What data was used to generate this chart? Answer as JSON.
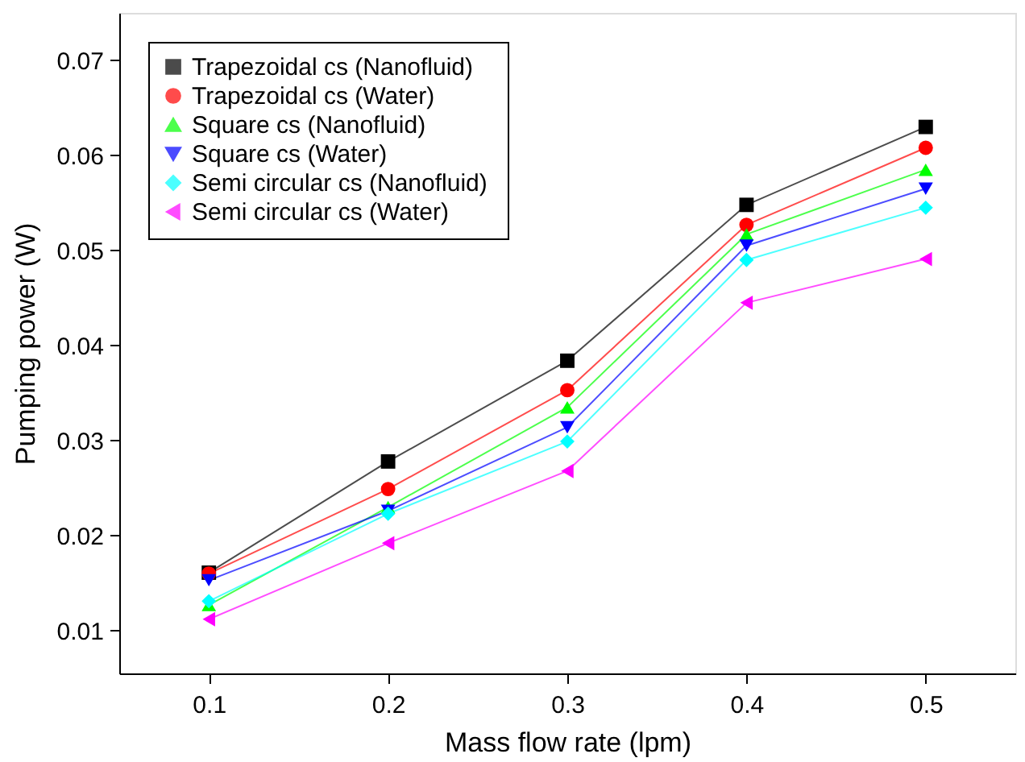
{
  "chart_data": {
    "type": "line",
    "xlabel": "Mass flow rate (lpm)",
    "ylabel": "Pumping power (W)",
    "x": [
      0.1,
      0.2,
      0.3,
      0.4,
      0.5
    ],
    "xlim": [
      0.05,
      0.55
    ],
    "xticks": [
      0.1,
      0.2,
      0.3,
      0.4,
      0.5
    ],
    "ylim": [
      0.0055,
      0.075
    ],
    "yticks": [
      0.01,
      0.02,
      0.03,
      0.04,
      0.05,
      0.06,
      0.07
    ],
    "grid": false,
    "legend": "top left",
    "line_style": "solid",
    "series": [
      {
        "name": "Trapezoidal cs (Nanofluid)",
        "color": "#000000",
        "marker": "square",
        "values": [
          0.0161,
          0.0278,
          0.0384,
          0.0548,
          0.063
        ]
      },
      {
        "name": "Trapezoidal cs (Water)",
        "color": "#ff0000",
        "marker": "circle",
        "values": [
          0.016,
          0.0249,
          0.0353,
          0.0527,
          0.0608
        ]
      },
      {
        "name": "Square cs (Nanofluid)",
        "color": "#00ff00",
        "marker": "triangle",
        "values": [
          0.0127,
          0.023,
          0.0335,
          0.0517,
          0.0585
        ]
      },
      {
        "name": "Square cs (Water)",
        "color": "#0000ff",
        "marker": "triangle-down",
        "values": [
          0.0153,
          0.0226,
          0.0314,
          0.0505,
          0.0565
        ]
      },
      {
        "name": "Semi circular  cs (Nanofluid)",
        "color": "#00ffff",
        "marker": "diamond",
        "values": [
          0.0131,
          0.0223,
          0.0299,
          0.049,
          0.0545
        ]
      },
      {
        "name": "Semi circular cs (Water)",
        "color": "#ff00ff",
        "marker": "triangle-left",
        "values": [
          0.0112,
          0.0192,
          0.0268,
          0.0445,
          0.0491
        ]
      }
    ]
  }
}
